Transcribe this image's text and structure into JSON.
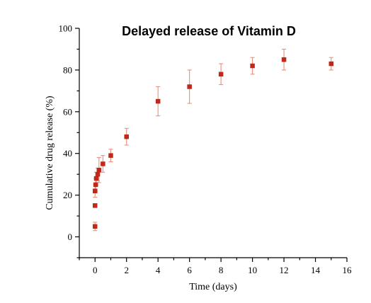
{
  "chart_data": {
    "type": "scatter",
    "title": "Delayed release of Vitamin D",
    "xlabel": "Time (days)",
    "ylabel": "Cumulative drug release (%)",
    "xlim": [
      -1.0,
      16.0
    ],
    "ylim": [
      -10,
      100
    ],
    "x_ticks": [
      0,
      2,
      4,
      6,
      8,
      10,
      12,
      14,
      16
    ],
    "y_ticks": [
      0,
      20,
      40,
      60,
      80,
      100
    ],
    "grid": false,
    "colors": {
      "marker": "#c0281c",
      "error_bar": "#e8907c"
    },
    "series": [
      {
        "marker": "square",
        "x": [
          0,
          0,
          0,
          0.04,
          0.08,
          0.17,
          0.25,
          0.5,
          1,
          2,
          4,
          6,
          8,
          10,
          12,
          15
        ],
        "y": [
          5,
          15,
          22,
          25,
          28,
          30,
          32,
          35,
          39,
          48,
          65,
          72,
          78,
          82,
          85,
          83
        ],
        "error": [
          2,
          0,
          3,
          3,
          3,
          3,
          6,
          4,
          3,
          4,
          7,
          8,
          5,
          4,
          5,
          3
        ]
      }
    ]
  }
}
